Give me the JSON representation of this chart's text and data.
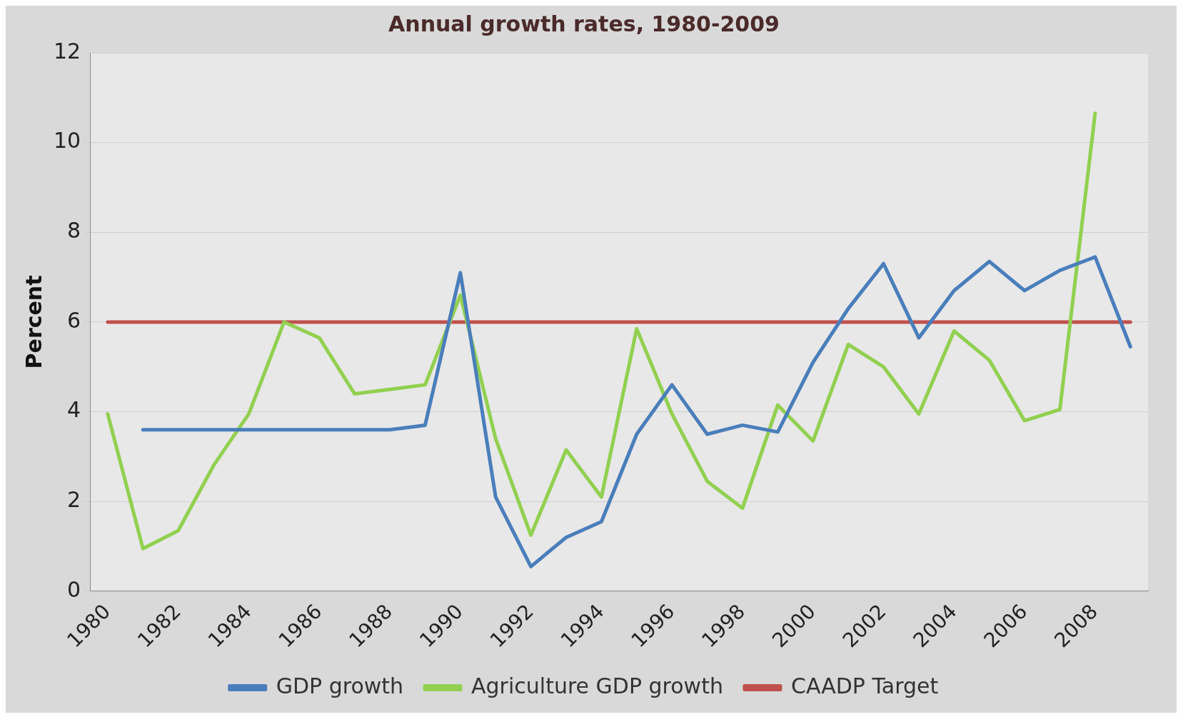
{
  "chart_data": {
    "type": "line",
    "title": "Annual growth rates, 1980-2009",
    "ylabel": "Percent",
    "categories": [
      "1980",
      null,
      "1982",
      null,
      "1984",
      null,
      "1986",
      null,
      "1988",
      null,
      "1990",
      null,
      "1992",
      null,
      "1994",
      null,
      "1996",
      null,
      "1998",
      null,
      "2000",
      null,
      "2002",
      null,
      "2004",
      null,
      "2006",
      null,
      "2008",
      null
    ],
    "series": [
      {
        "name": "GDP growth",
        "color": "#4a7ebb",
        "values": [
          null,
          3.6,
          3.6,
          3.6,
          3.6,
          3.6,
          3.6,
          3.6,
          3.6,
          3.7,
          7.1,
          2.1,
          0.55,
          1.2,
          1.55,
          3.5,
          4.6,
          3.5,
          3.7,
          3.55,
          5.1,
          6.3,
          7.3,
          5.65,
          6.7,
          7.35,
          6.7,
          7.15,
          7.45,
          5.45
        ]
      },
      {
        "name": "Agriculture GDP growth",
        "color": "#92d050",
        "values": [
          3.95,
          0.95,
          1.35,
          2.8,
          3.95,
          6.0,
          5.65,
          4.4,
          4.5,
          4.6,
          6.6,
          3.4,
          1.25,
          3.15,
          2.1,
          5.85,
          3.95,
          2.45,
          1.85,
          4.15,
          3.35,
          5.5,
          5.0,
          3.95,
          5.8,
          5.15,
          3.8,
          4.05,
          10.65,
          null
        ]
      },
      {
        "name": "CAADP Target",
        "color": "#c0504d",
        "values": [
          6,
          6,
          6,
          6,
          6,
          6,
          6,
          6,
          6,
          6,
          6,
          6,
          6,
          6,
          6,
          6,
          6,
          6,
          6,
          6,
          6,
          6,
          6,
          6,
          6,
          6,
          6,
          6,
          6,
          6
        ]
      }
    ],
    "ylim": [
      0,
      12
    ],
    "yticks": [
      0,
      2,
      4,
      6,
      8,
      10,
      12
    ],
    "grid": "y",
    "legend": "bottom",
    "marker": "none",
    "line_style": "solid"
  }
}
